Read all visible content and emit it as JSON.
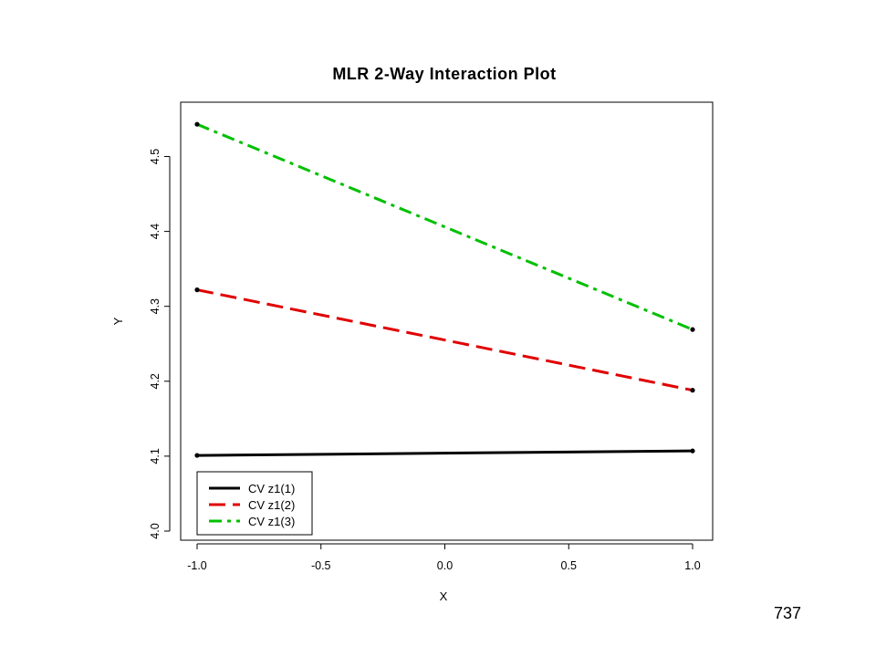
{
  "page_number": "737",
  "chart_data": {
    "type": "line",
    "title": "MLR 2-Way Interaction Plot",
    "xlabel": "X",
    "ylabel": "Y",
    "x": [
      -1.0,
      1.0
    ],
    "xlim": [
      -1.0,
      1.0
    ],
    "ylim": [
      4.0,
      4.55
    ],
    "x_ticks": [
      "-1.0",
      "-0.5",
      "0.0",
      "0.5",
      "1.0"
    ],
    "x_tick_values": [
      -1.0,
      -0.5,
      0.0,
      0.5,
      1.0
    ],
    "y_ticks": [
      "4.0",
      "4.1",
      "4.2",
      "4.3",
      "4.4",
      "4.5"
    ],
    "y_tick_values": [
      4.0,
      4.1,
      4.2,
      4.3,
      4.4,
      4.5
    ],
    "grid": false,
    "legend_position": "bottom-left",
    "series": [
      {
        "name": "CV z1(1)",
        "values": [
          4.101,
          4.107
        ],
        "color": "#000000",
        "dash": "solid"
      },
      {
        "name": "CV z1(2)",
        "values": [
          4.322,
          4.188
        ],
        "color": "#e00000",
        "dash": "dashed"
      },
      {
        "name": "CV z1(3)",
        "values": [
          4.543,
          4.269
        ],
        "color": "#00c000",
        "dash": "dashdot"
      }
    ]
  }
}
